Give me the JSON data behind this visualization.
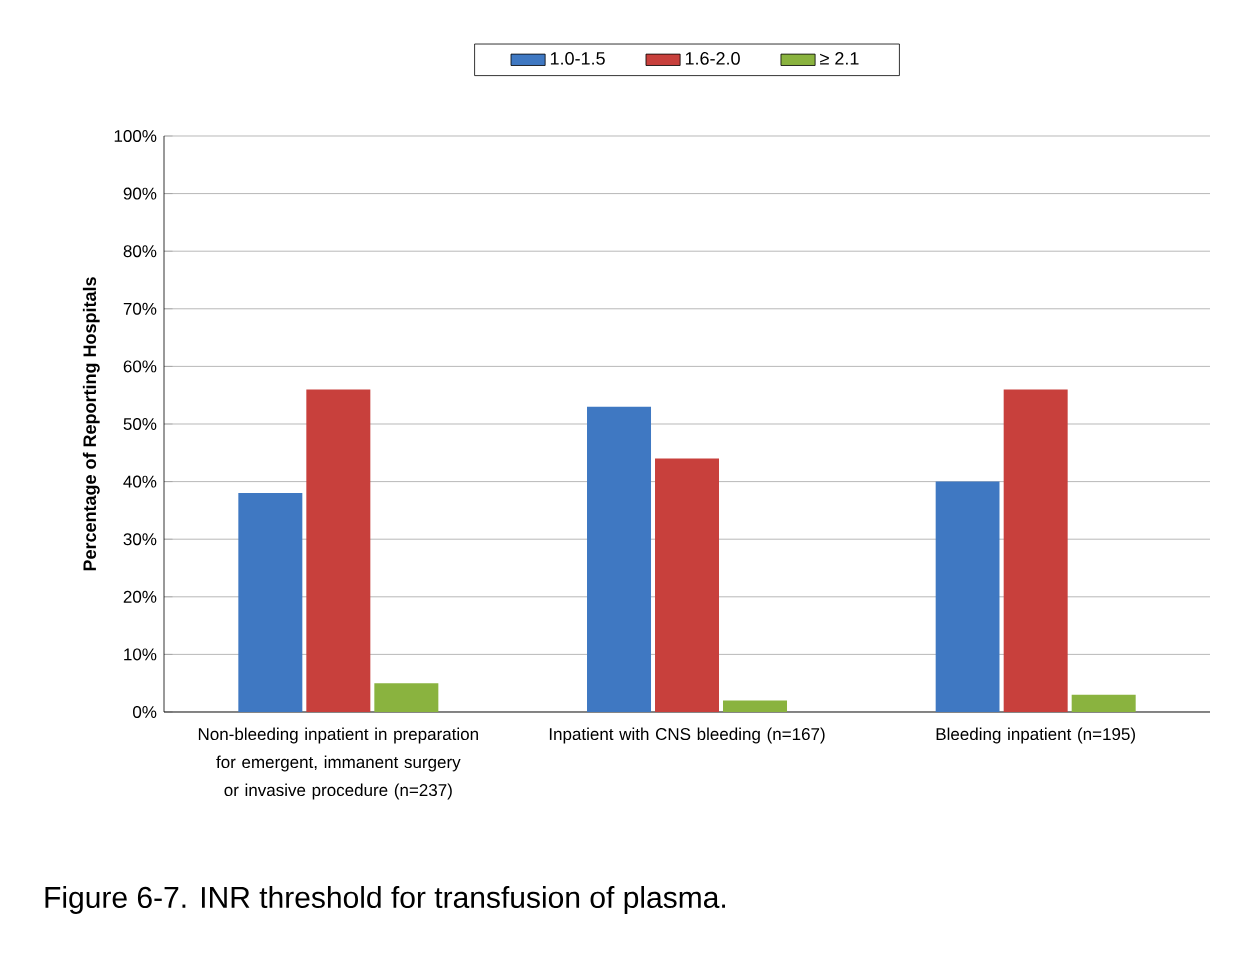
{
  "chart_data": {
    "type": "bar",
    "ylabel": "Percentage of Reporting Hospitals",
    "categories": [
      "Non-bleeding inpatient in preparation for emergent, immanent surgery or invasive procedure (n=237)",
      "Inpatient with CNS bleeding (n=167)",
      "Bleeding inpatient (n=195)"
    ],
    "series": [
      {
        "name": "1.0-1.5",
        "color": "#3f78c2",
        "values": [
          38,
          53,
          40
        ]
      },
      {
        "name": "1.6-2.0",
        "color": "#c8403c",
        "values": [
          56,
          44,
          56
        ]
      },
      {
        "name": "≥ 2.1",
        "color": "#8ab33f",
        "values": [
          5,
          2,
          3
        ]
      }
    ],
    "ylim": [
      0,
      100
    ],
    "yticks": [
      {
        "value": 0,
        "label": "0%"
      },
      {
        "value": 10,
        "label": "10%"
      },
      {
        "value": 20,
        "label": "20%"
      },
      {
        "value": 30,
        "label": "30%"
      },
      {
        "value": 40,
        "label": "40%"
      },
      {
        "value": 50,
        "label": "50%"
      },
      {
        "value": 60,
        "label": "60%"
      },
      {
        "value": 70,
        "label": "70%"
      },
      {
        "value": 80,
        "label": "80%"
      },
      {
        "value": 90,
        "label": "90%"
      },
      {
        "value": 100,
        "label": "100%"
      }
    ],
    "grid": "y",
    "legend": "top",
    "annotations": [
      "Figure 6-7. INR threshold for transfusion of plasma."
    ]
  }
}
